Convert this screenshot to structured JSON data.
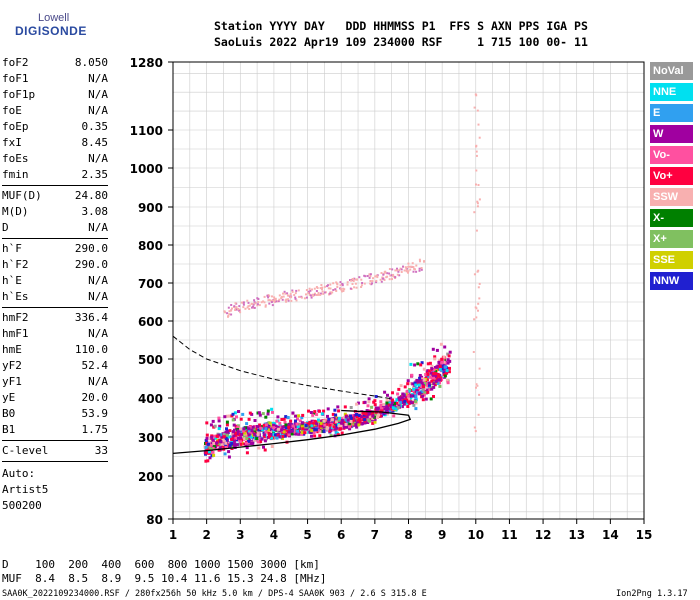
{
  "logo": {
    "top": "Lowell",
    "main": "DIGISONDE"
  },
  "header": {
    "line1": "Station YYYY DAY   DDD HHMMSS P1  FFS S AXN PPS IGA PS",
    "line2": "SaoLuis 2022 Apr19 109 234000 RSF     1 715 100 00- 11"
  },
  "params": {
    "group1": [
      {
        "key": "foF2",
        "value": "8.050"
      },
      {
        "key": "foF1",
        "value": "N/A"
      },
      {
        "key": "foF1p",
        "value": "N/A"
      },
      {
        "key": "foE",
        "value": "N/A"
      },
      {
        "key": "foEp",
        "value": "0.35"
      },
      {
        "key": "fxI",
        "value": "8.45"
      },
      {
        "key": "foEs",
        "value": "N/A"
      },
      {
        "key": "fmin",
        "value": "2.35"
      }
    ],
    "group2": [
      {
        "key": "MUF(D)",
        "value": "24.80"
      },
      {
        "key": "M(D)",
        "value": "3.08"
      },
      {
        "key": "D",
        "value": "N/A"
      }
    ],
    "group3": [
      {
        "key": "h`F",
        "value": "290.0"
      },
      {
        "key": "h`F2",
        "value": "290.0"
      },
      {
        "key": "h`E",
        "value": "N/A"
      },
      {
        "key": "h`Es",
        "value": "N/A"
      }
    ],
    "group4": [
      {
        "key": "hmF2",
        "value": "336.4"
      },
      {
        "key": "hmF1",
        "value": "N/A"
      },
      {
        "key": "hmE",
        "value": "110.0"
      },
      {
        "key": "yF2",
        "value": "52.4"
      },
      {
        "key": "yF1",
        "value": "N/A"
      },
      {
        "key": "yE",
        "value": "20.0"
      },
      {
        "key": "B0",
        "value": "53.9"
      },
      {
        "key": "B1",
        "value": "1.75"
      }
    ],
    "group5": [
      {
        "key": "C-level",
        "value": "33"
      }
    ],
    "auto": [
      "Auto:",
      "Artist5",
      "500200"
    ]
  },
  "legend": [
    {
      "label": "NoVal",
      "color": "#999999"
    },
    {
      "label": "NNE",
      "color": "#00e0f0"
    },
    {
      "label": "E",
      "color": "#30a0f0"
    },
    {
      "label": "W",
      "color": "#a000a0"
    },
    {
      "label": "Vo-",
      "color": "#ff50a0"
    },
    {
      "label": "Vo+",
      "color": "#ff0040"
    },
    {
      "label": "SSW",
      "color": "#f8b0b0"
    },
    {
      "label": "X-",
      "color": "#008000"
    },
    {
      "label": "X+",
      "color": "#80c060"
    },
    {
      "label": "SSE",
      "color": "#d0d000"
    },
    {
      "label": "NNW",
      "color": "#2020d0"
    }
  ],
  "chart_data": {
    "type": "scatter",
    "xlabel": "",
    "ylabel": "",
    "xlim": [
      1,
      15
    ],
    "y_ticks": [
      80,
      200,
      300,
      400,
      500,
      600,
      700,
      800,
      900,
      1000,
      1100,
      1280
    ],
    "x_ticks": [
      1,
      2,
      3,
      4,
      5,
      6,
      7,
      8,
      9,
      10,
      11,
      12,
      13,
      14,
      15
    ],
    "traces": {
      "o_trace": [
        [
          1.9,
          272
        ],
        [
          2.3,
          285
        ],
        [
          2.8,
          295
        ],
        [
          3.3,
          302
        ],
        [
          3.8,
          310
        ],
        [
          4.5,
          318
        ],
        [
          5.2,
          325
        ],
        [
          6,
          335
        ],
        [
          6.7,
          350
        ],
        [
          7.3,
          372
        ],
        [
          7.8,
          395
        ],
        [
          8.3,
          420
        ],
        [
          8.8,
          455
        ],
        [
          9.2,
          490
        ]
      ],
      "x_trace": [
        [
          2.5,
          625
        ],
        [
          3,
          640
        ],
        [
          3.5,
          650
        ],
        [
          4,
          660
        ],
        [
          4.5,
          668
        ],
        [
          5,
          675
        ],
        [
          5.5,
          685
        ],
        [
          6,
          695
        ],
        [
          6.5,
          705
        ],
        [
          7,
          715
        ],
        [
          7.5,
          728
        ],
        [
          8,
          740
        ],
        [
          8.5,
          755
        ]
      ]
    },
    "profile_solid": [
      [
        1,
        258
      ],
      [
        2,
        265
      ],
      [
        3,
        274
      ],
      [
        4,
        283
      ],
      [
        5,
        293
      ],
      [
        6,
        305
      ],
      [
        7,
        320
      ],
      [
        7.7,
        335
      ],
      [
        8.05,
        345
      ],
      [
        8,
        356
      ],
      [
        7.2,
        364
      ],
      [
        6.5,
        366
      ],
      [
        6,
        368
      ]
    ],
    "profile_dashed": [
      [
        1,
        560
      ],
      [
        1.5,
        525
      ],
      [
        2,
        500
      ],
      [
        3,
        470
      ],
      [
        4,
        448
      ],
      [
        5,
        432
      ],
      [
        6,
        418
      ],
      [
        7,
        405
      ],
      [
        7.5,
        398
      ]
    ]
  },
  "bottom": {
    "d_row": "D    100  200  400  600  800 1000 1500 3000 [km]",
    "muf_row": "MUF  8.4  8.5  8.9  9.5 10.4 11.6 15.3 24.8 [MHz]",
    "footer_left": "SAA0K_2022109234000.RSF / 280fx256h 50 kHz 5.0 km / DPS-4 SAA0K 903 / 2.6 S 315.8 E",
    "footer_right": "Ion2Png 1.3.17"
  }
}
